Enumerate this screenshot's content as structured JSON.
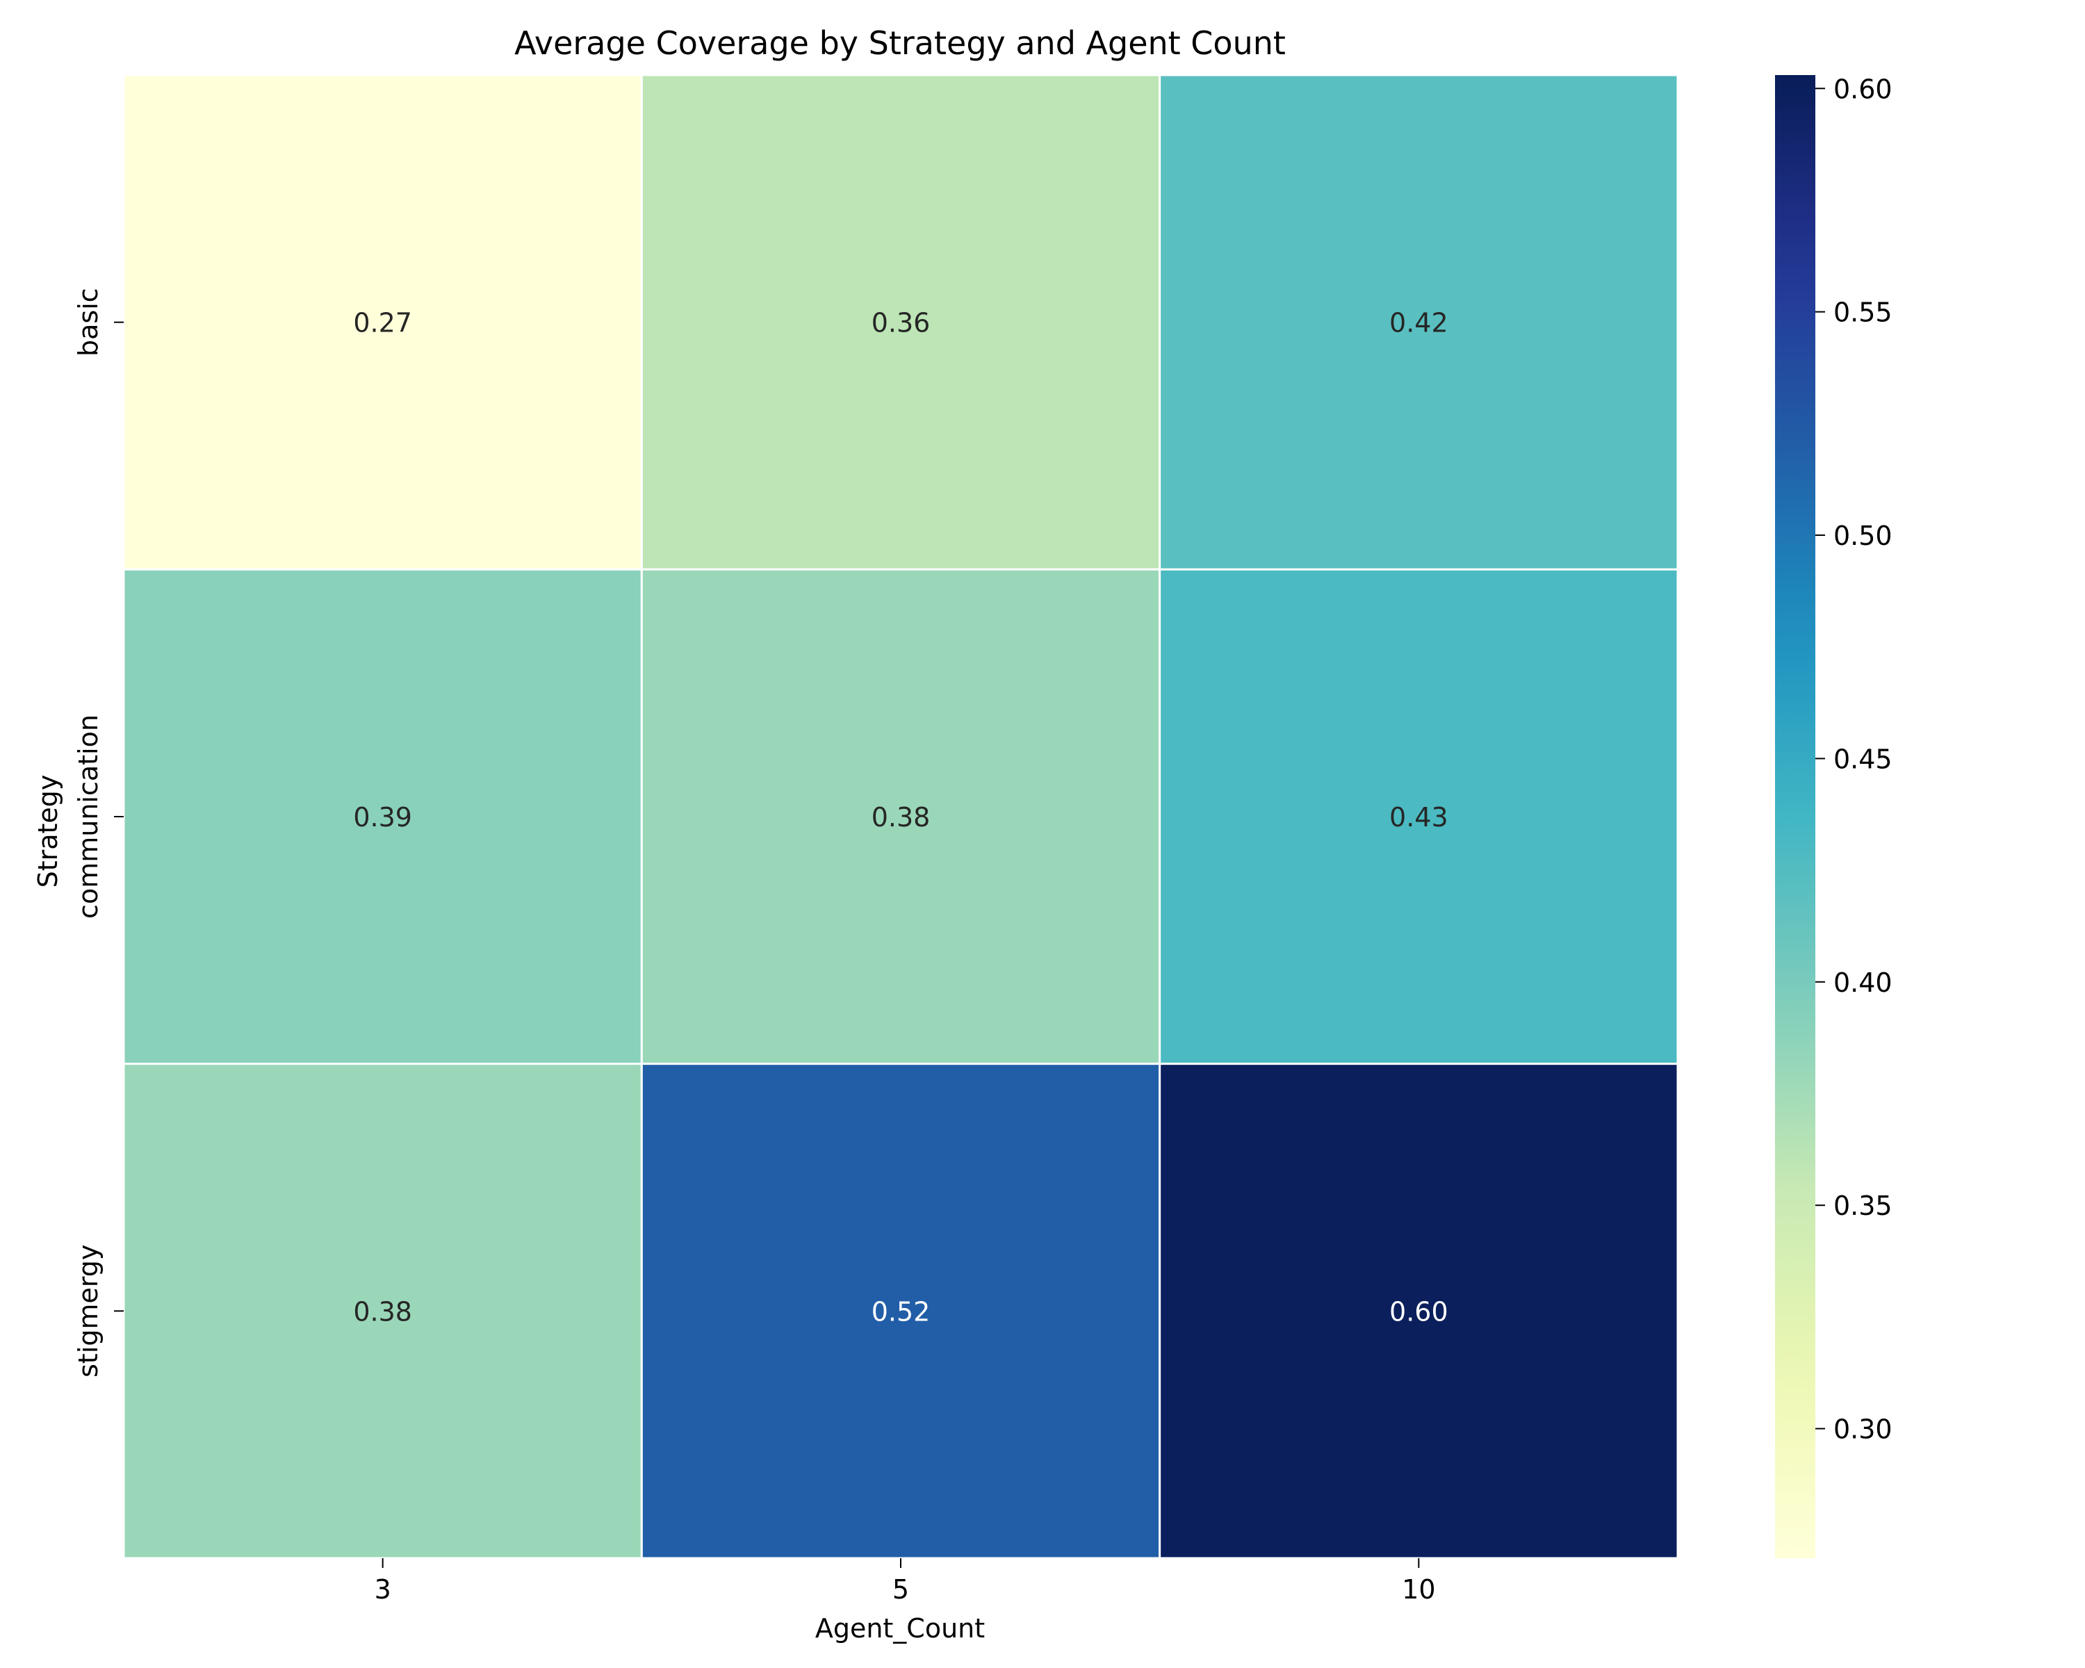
{
  "chart_data": {
    "type": "heatmap",
    "title": "Average Coverage by Strategy and Agent Count",
    "xlabel": "Agent_Count",
    "ylabel": "Strategy",
    "x_categories": [
      "3",
      "5",
      "10"
    ],
    "y_categories": [
      "basic",
      "communication",
      "stigmergy"
    ],
    "values": [
      [
        0.27,
        0.36,
        0.42
      ],
      [
        0.39,
        0.38,
        0.43
      ],
      [
        0.38,
        0.52,
        0.6
      ]
    ],
    "cell_labels": [
      [
        "0.27",
        "0.36",
        "0.42"
      ],
      [
        "0.39",
        "0.38",
        "0.43"
      ],
      [
        "0.38",
        "0.52",
        "0.60"
      ]
    ],
    "colormap": "YlGnBu",
    "colorbar": {
      "range": [
        0.271,
        0.603
      ],
      "ticks": [
        0.3,
        0.35,
        0.4,
        0.45,
        0.5,
        0.55,
        0.6
      ],
      "tick_labels": [
        "0.30",
        "0.35",
        "0.40",
        "0.45",
        "0.50",
        "0.55",
        "0.60"
      ]
    },
    "cell_border_color": "#ffffff",
    "annotation_dark_text": "#262626",
    "annotation_light_text": "#ffffff"
  }
}
